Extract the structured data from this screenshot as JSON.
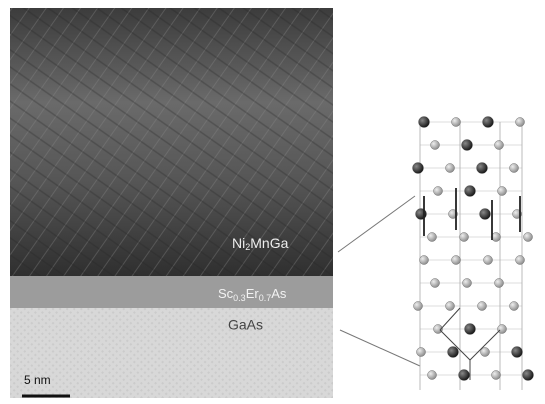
{
  "micrograph": {
    "film_label": [
      "Ni",
      "2",
      "MnGa"
    ],
    "interlayer_label": [
      "Sc",
      "0.3",
      "Er",
      "0.7",
      "As"
    ],
    "substrate_label": "GaAs",
    "scale_bar_label": "5 nm"
  }
}
